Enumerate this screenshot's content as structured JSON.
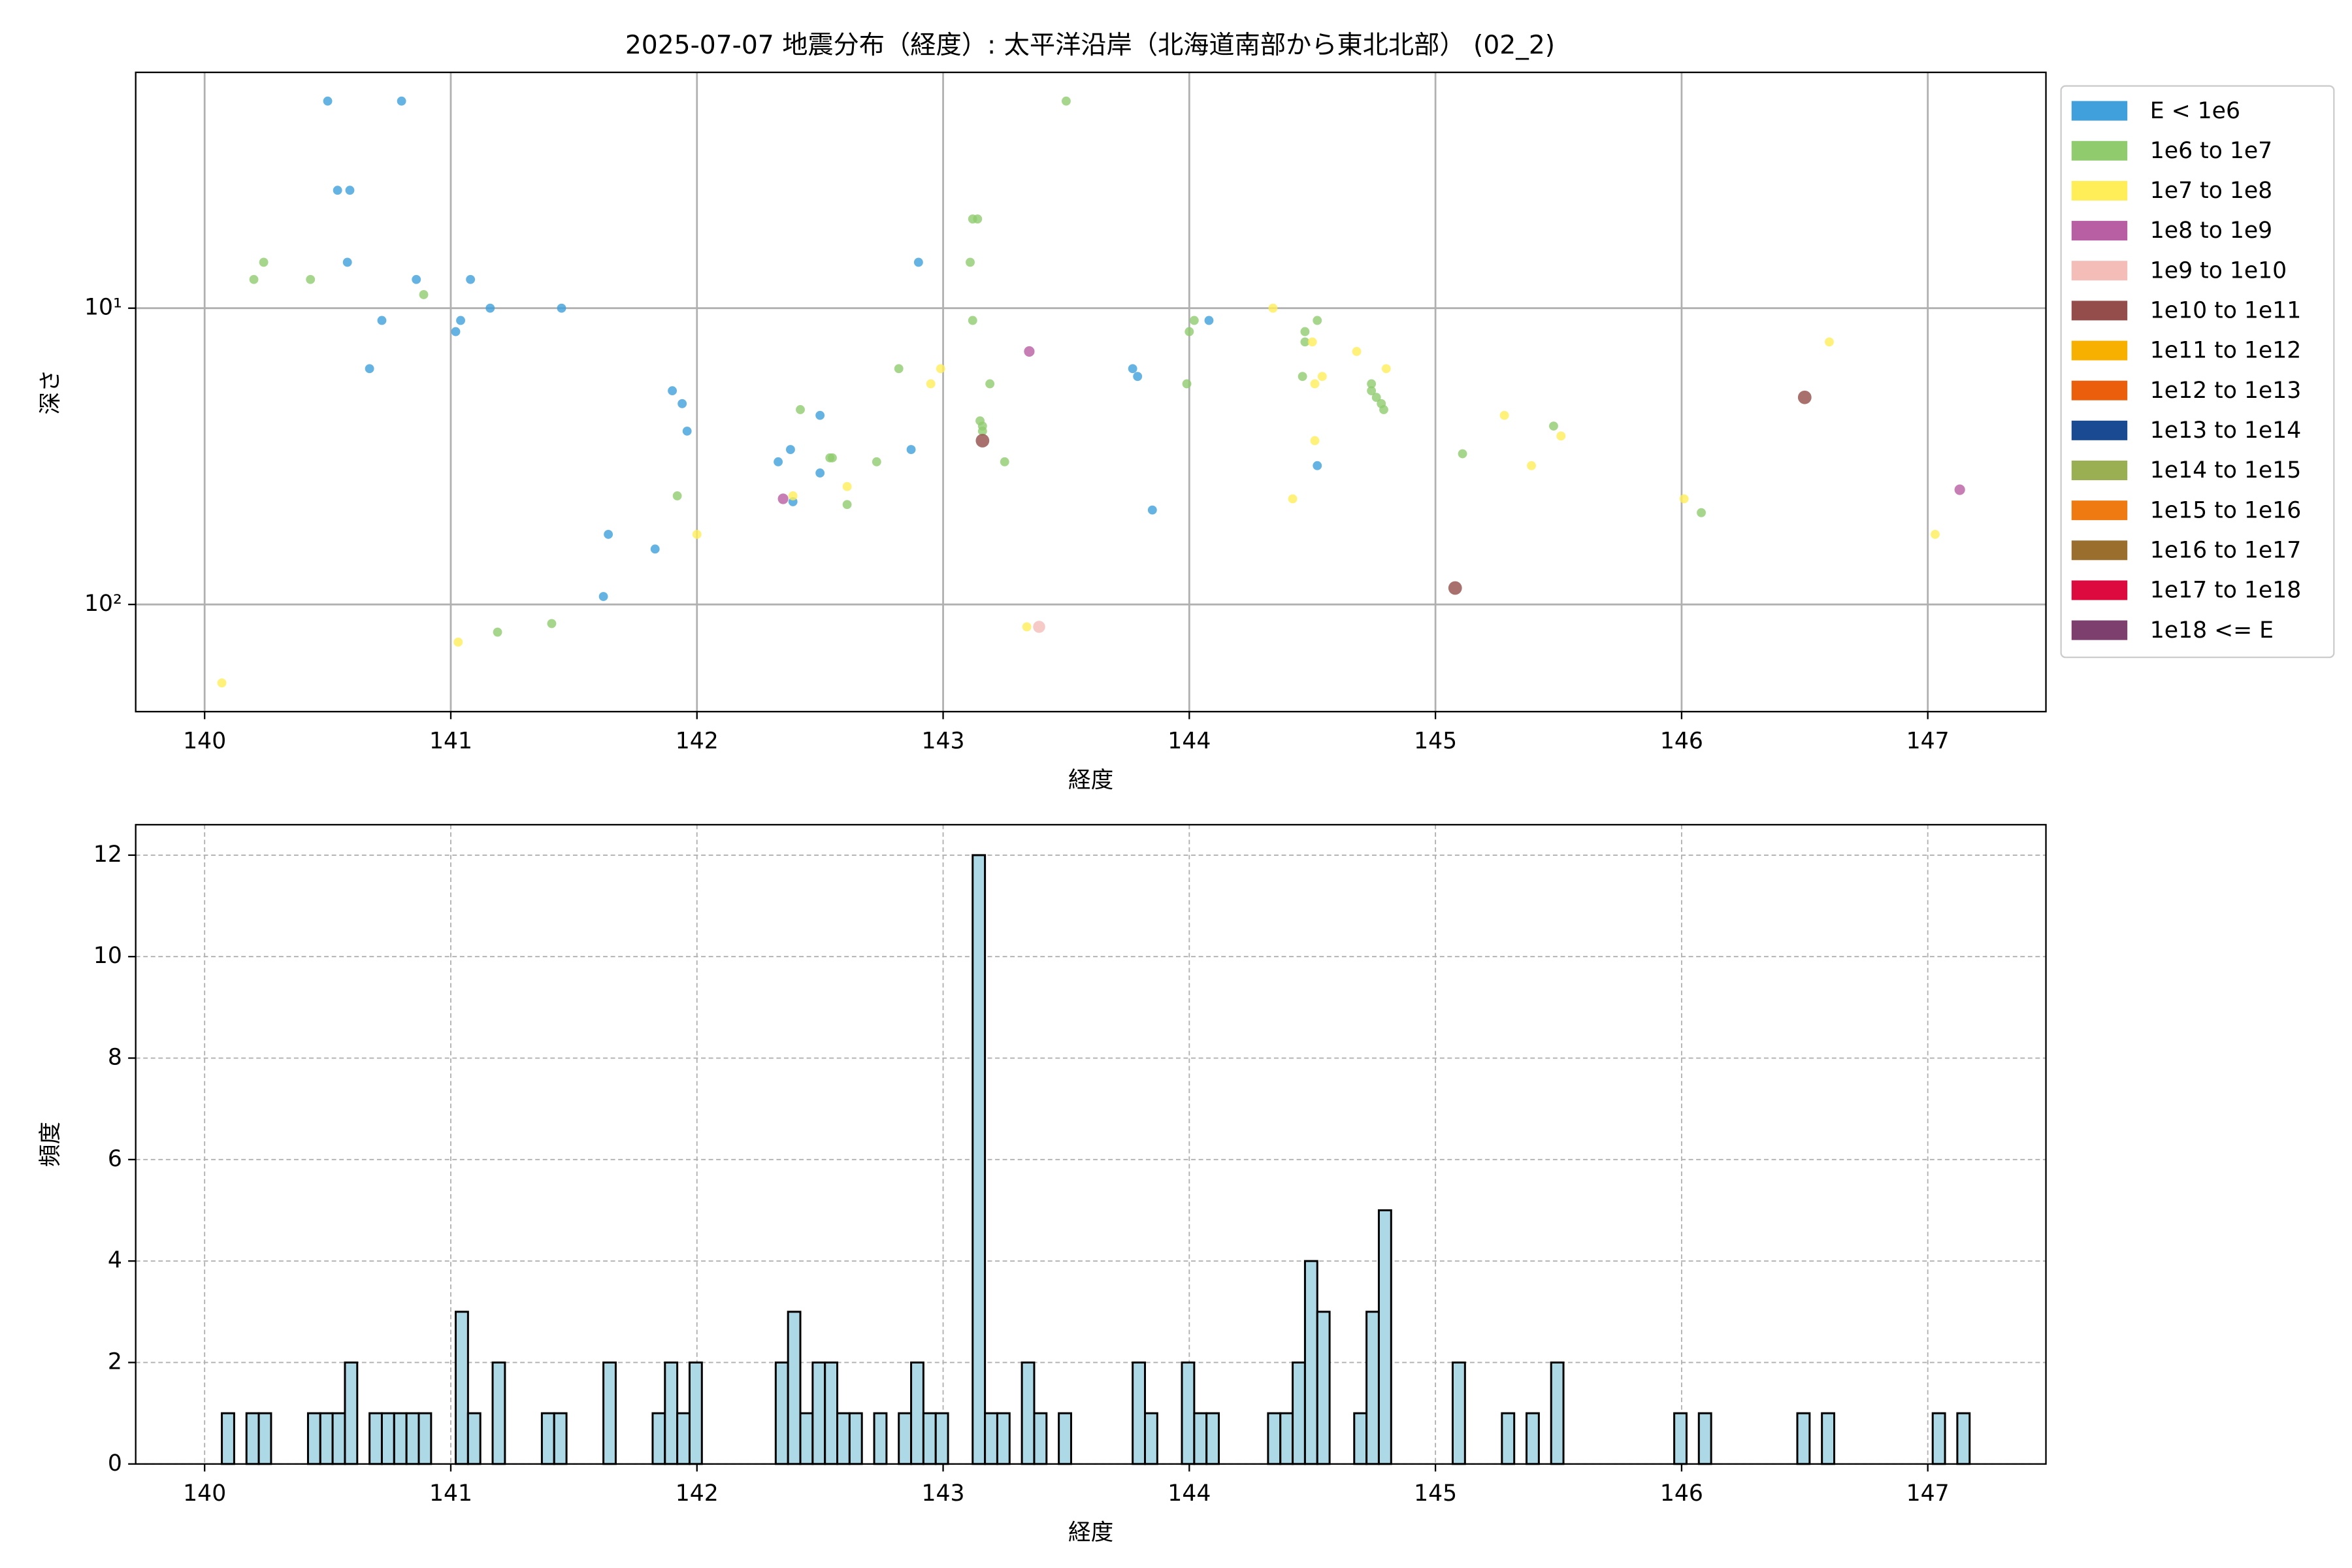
{
  "chart_data": [
    {
      "type": "scatter",
      "title": "2025-07-07 地震分布（経度）: 太平洋沿岸（北海道南部から東北北部） (02_2)",
      "xlabel": "経度",
      "ylabel": "深さ",
      "xlim": [
        139.72,
        147.48
      ],
      "ylim": [
        1.6,
        230
      ],
      "log_y": true,
      "y_inverted": true,
      "grid": true,
      "legend": "outside",
      "xticks": [
        140,
        141,
        142,
        143,
        144,
        145,
        146,
        147
      ],
      "yticks": [
        {
          "value": 10,
          "label": "10¹"
        },
        {
          "value": 100,
          "label": "10²"
        }
      ],
      "series": [
        {
          "name": "E < 1e6",
          "color": "#3fa0dc",
          "x": [
            140.5,
            140.8,
            140.54,
            140.59,
            140.58,
            140.86,
            141.08,
            141.16,
            141.45,
            140.72,
            141.04,
            141.02,
            140.67,
            141.9,
            141.94,
            141.96,
            142.5,
            142.38,
            142.87,
            142.33,
            142.5,
            142.39,
            142.9,
            141.64,
            141.83,
            141.62,
            143.77,
            143.79,
            144.08,
            144.52,
            143.85
          ],
          "values": [
            2,
            2,
            4,
            4,
            7,
            8,
            8,
            10,
            10,
            11,
            11,
            12,
            16,
            19,
            21,
            26,
            23,
            30,
            30,
            33,
            36,
            45,
            7,
            58,
            65,
            94,
            16,
            17,
            11,
            34,
            48
          ]
        },
        {
          "name": "1e6 to 1e7",
          "color": "#90cc6e",
          "x": [
            143.5,
            140.2,
            140.24,
            140.43,
            140.89,
            143.12,
            143.14,
            143.11,
            143.12,
            142.82,
            143.19,
            142.42,
            143.15,
            143.16,
            143.16,
            142.54,
            142.55,
            142.73,
            143.25,
            142.61,
            141.92,
            141.19,
            141.41,
            144.0,
            144.02,
            144.52,
            144.47,
            144.47,
            143.99,
            144.46,
            144.74,
            144.74,
            144.76,
            144.78,
            144.79,
            145.48,
            145.11,
            146.08
          ],
          "values": [
            2,
            8,
            7,
            8,
            9,
            5,
            5,
            7,
            11,
            16,
            18,
            22,
            24,
            25,
            26,
            32,
            32,
            33,
            33,
            46,
            43,
            124,
            116,
            12,
            11,
            11,
            12,
            13,
            18,
            17,
            18,
            19,
            20,
            21,
            22,
            25,
            31,
            49
          ]
        },
        {
          "name": "1e7 to 1e8",
          "color": "#ffee58",
          "x": [
            140.07,
            141.03,
            142.0,
            142.39,
            142.61,
            142.95,
            142.99,
            143.34,
            144.34,
            144.5,
            144.68,
            144.8,
            144.51,
            144.54,
            145.28,
            144.51,
            145.51,
            144.42,
            145.39,
            146.01,
            146.6,
            147.03
          ],
          "values": [
            184,
            134,
            58,
            43,
            40,
            18,
            16,
            119,
            10,
            13,
            14,
            16,
            18,
            17,
            23,
            28,
            27,
            44,
            34,
            44,
            13,
            58
          ]
        },
        {
          "name": "1e8 to 1e9",
          "color": "#b85ea3",
          "x": [
            143.35,
            142.35,
            147.13
          ],
          "values": [
            14,
            44,
            41
          ]
        },
        {
          "name": "1e9 to 1e10",
          "color": "#f4bdb8",
          "x": [
            143.39
          ],
          "values": [
            119
          ]
        },
        {
          "name": "1e10 to 1e11",
          "color": "#944d4a",
          "x": [
            143.16,
            146.5,
            145.08
          ],
          "values": [
            28,
            20,
            88
          ]
        },
        {
          "name": "1e11 to 1e12",
          "color": "#f7b000",
          "x": [],
          "values": []
        },
        {
          "name": "1e12 to 1e13",
          "color": "#ea5e0c",
          "x": [],
          "values": []
        },
        {
          "name": "1e13 to 1e14",
          "color": "#1a4a92",
          "x": [],
          "values": []
        },
        {
          "name": "1e14 to 1e15",
          "color": "#9aae52",
          "x": [],
          "values": []
        },
        {
          "name": "1e15 to 1e16",
          "color": "#ef7a11",
          "x": [],
          "values": []
        },
        {
          "name": "1e16 to 1e17",
          "color": "#9a6e2d",
          "x": [],
          "values": []
        },
        {
          "name": "1e17 to 1e18",
          "color": "#dc0a3f",
          "x": [],
          "values": []
        },
        {
          "name": "1e18 <= E",
          "color": "#7c3f6e",
          "x": [],
          "values": []
        }
      ]
    },
    {
      "type": "histogram",
      "xlabel": "経度",
      "ylabel": "頻度",
      "xlim": [
        139.72,
        147.48
      ],
      "ylim": [
        0,
        12.6
      ],
      "grid": true,
      "color": "#add8e6",
      "edgecolor": "#000000",
      "xticks": [
        140,
        141,
        142,
        143,
        144,
        145,
        146,
        147
      ],
      "yticks": [
        0,
        2,
        4,
        6,
        8,
        10,
        12
      ],
      "bins": [
        140.07,
        140.12,
        140.17,
        140.22,
        140.27,
        140.32,
        140.37,
        140.42,
        140.47,
        140.52,
        140.57,
        140.62,
        140.67,
        140.72,
        140.77,
        140.82,
        140.87,
        140.92,
        140.97,
        141.02,
        141.07,
        141.12,
        141.17,
        141.22,
        141.27,
        141.32,
        141.37,
        141.42,
        141.47,
        141.52,
        141.57,
        141.62,
        141.67,
        141.72,
        141.77,
        141.82,
        141.87,
        141.92,
        141.97,
        142.02,
        142.07,
        142.12,
        142.17,
        142.22,
        142.27,
        142.32,
        142.37,
        142.42,
        142.47,
        142.52,
        142.57,
        142.62,
        142.67,
        142.72,
        142.77,
        142.82,
        142.87,
        142.92,
        142.97,
        143.02,
        143.07,
        143.12,
        143.17,
        143.22,
        143.27,
        143.32,
        143.37,
        143.42,
        143.47,
        143.52,
        143.57,
        143.62,
        143.67,
        143.72,
        143.77,
        143.82,
        143.87,
        143.92,
        143.97,
        144.02,
        144.07,
        144.12,
        144.17,
        144.22,
        144.27,
        144.32,
        144.37,
        144.42,
        144.47,
        144.52,
        144.57,
        144.62,
        144.67,
        144.72,
        144.77,
        144.82,
        144.87,
        144.92,
        144.97,
        145.02,
        145.07,
        145.12,
        145.17,
        145.22,
        145.27,
        145.32,
        145.37,
        145.42,
        145.47,
        145.52,
        145.57,
        145.62,
        145.67,
        145.72,
        145.77,
        145.82,
        145.87,
        145.92,
        145.97,
        146.02,
        146.07,
        146.12,
        146.17,
        146.22,
        146.27,
        146.32,
        146.37,
        146.42,
        146.47,
        146.52,
        146.57,
        146.62,
        146.67,
        146.72,
        146.77,
        146.82,
        146.87,
        146.92,
        146.97,
        147.02,
        147.07,
        147.12,
        147.17
      ],
      "counts": [
        1,
        0,
        1,
        1,
        0,
        0,
        0,
        1,
        1,
        1,
        2,
        0,
        1,
        1,
        1,
        1,
        1,
        0,
        0,
        3,
        1,
        0,
        2,
        0,
        0,
        0,
        1,
        1,
        0,
        0,
        0,
        2,
        0,
        0,
        0,
        1,
        2,
        1,
        2,
        0,
        0,
        0,
        0,
        0,
        0,
        2,
        3,
        1,
        2,
        2,
        1,
        1,
        0,
        1,
        0,
        1,
        2,
        1,
        1,
        0,
        0,
        12,
        1,
        1,
        0,
        2,
        1,
        0,
        1,
        0,
        0,
        0,
        0,
        0,
        2,
        1,
        0,
        0,
        2,
        1,
        1,
        0,
        0,
        0,
        0,
        1,
        1,
        2,
        4,
        3,
        0,
        0,
        1,
        3,
        5,
        0,
        0,
        0,
        0,
        0,
        2,
        0,
        0,
        0,
        1,
        0,
        1,
        0,
        2,
        0,
        0,
        0,
        0,
        0,
        0,
        0,
        0,
        0,
        1,
        0,
        1,
        0,
        0,
        0,
        0,
        0,
        0,
        0,
        1,
        0,
        1,
        0,
        0,
        0,
        0,
        0,
        0,
        0,
        0,
        1,
        0,
        1
      ]
    }
  ]
}
